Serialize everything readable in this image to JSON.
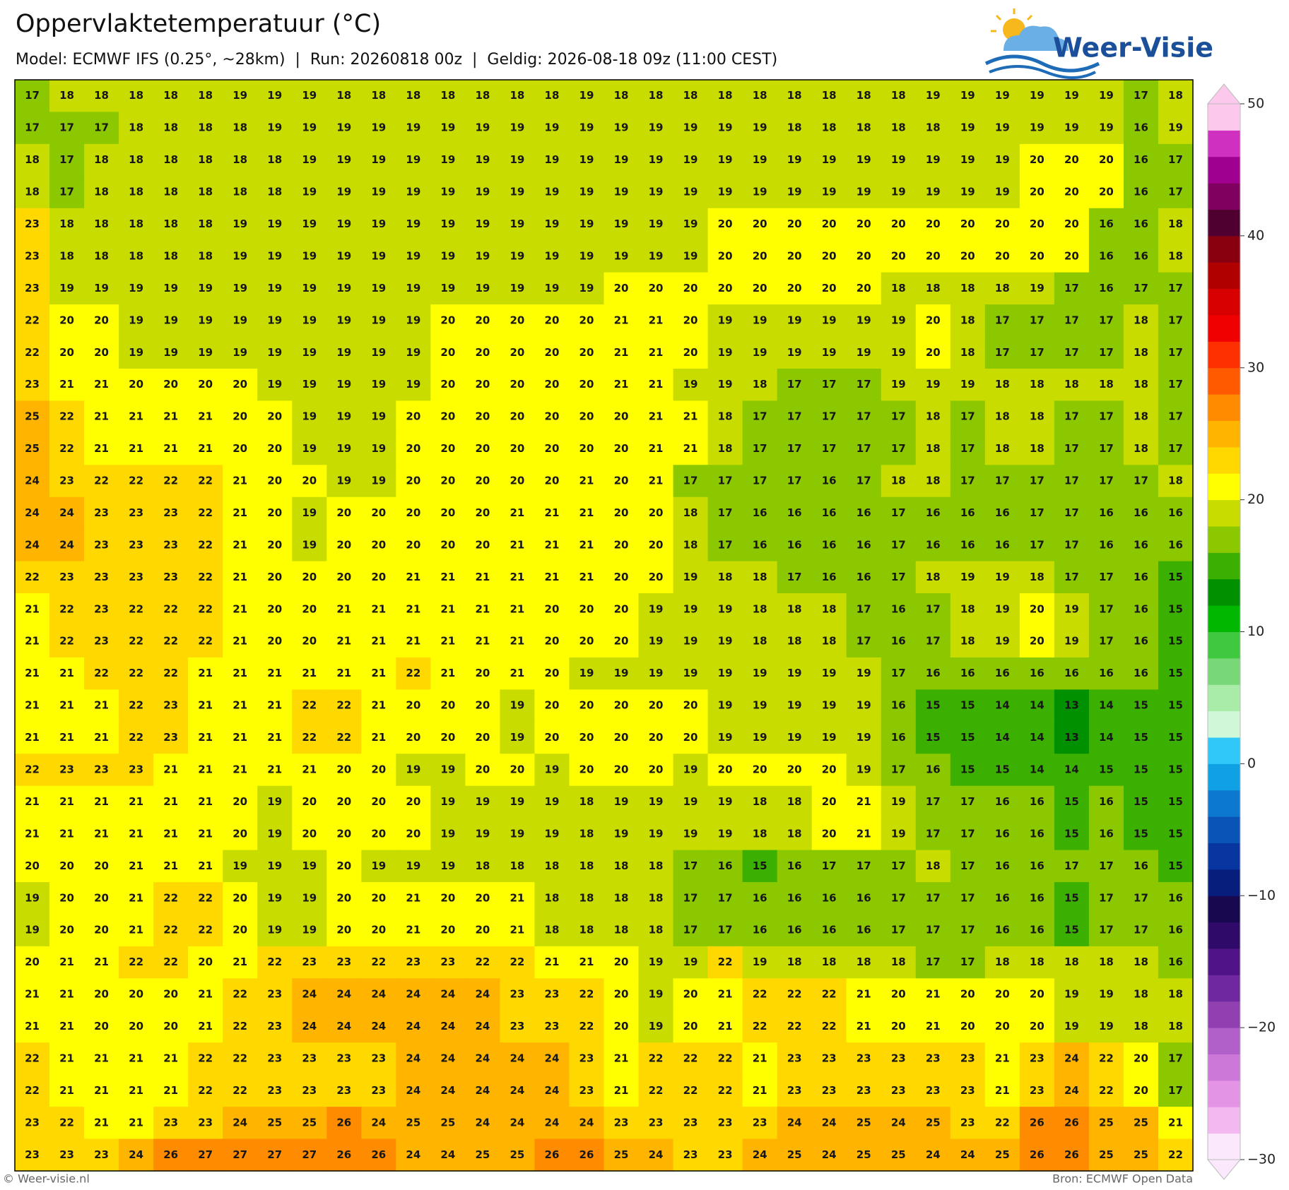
{
  "header": {
    "title": "Oppervlaktetemperatuur (°C)",
    "subtitle": "Model: ECMWF IFS (0.25°, ~28km)  |  Run: 20260818 00z  |  Geldig: 2026-08-18 09z (11:00 CEST)"
  },
  "logo": {
    "text": "Weer-Visie"
  },
  "map": {
    "values": [
      [
        17,
        18,
        18,
        18,
        18,
        18,
        19,
        19,
        19,
        18,
        18,
        18,
        18,
        18,
        18,
        18,
        19,
        18,
        18,
        18,
        18,
        18,
        18,
        18,
        18,
        18,
        19,
        19,
        19,
        19,
        19,
        19,
        17,
        18
      ],
      [
        17,
        17,
        17,
        18,
        18,
        18,
        18,
        19,
        19,
        19,
        19,
        19,
        19,
        19,
        19,
        19,
        19,
        19,
        19,
        19,
        19,
        19,
        18,
        18,
        18,
        18,
        18,
        19,
        19,
        19,
        19,
        19,
        16,
        19
      ],
      [
        18,
        17,
        18,
        18,
        18,
        18,
        18,
        18,
        19,
        19,
        19,
        19,
        19,
        19,
        19,
        19,
        19,
        19,
        19,
        19,
        19,
        19,
        19,
        19,
        19,
        19,
        19,
        19,
        19,
        20,
        20,
        20,
        16,
        17
      ],
      [
        18,
        17,
        18,
        18,
        18,
        18,
        18,
        18,
        19,
        19,
        19,
        19,
        19,
        19,
        19,
        19,
        19,
        19,
        19,
        19,
        19,
        19,
        19,
        19,
        19,
        19,
        19,
        19,
        19,
        20,
        20,
        20,
        16,
        17
      ],
      [
        23,
        18,
        18,
        18,
        18,
        18,
        19,
        19,
        19,
        19,
        19,
        19,
        19,
        19,
        19,
        19,
        19,
        19,
        19,
        19,
        20,
        20,
        20,
        20,
        20,
        20,
        20,
        20,
        20,
        20,
        20,
        16,
        16,
        18
      ],
      [
        23,
        18,
        18,
        18,
        18,
        18,
        19,
        19,
        19,
        19,
        19,
        19,
        19,
        19,
        19,
        19,
        19,
        19,
        19,
        19,
        20,
        20,
        20,
        20,
        20,
        20,
        20,
        20,
        20,
        20,
        20,
        16,
        16,
        18
      ],
      [
        23,
        19,
        19,
        19,
        19,
        19,
        19,
        19,
        19,
        19,
        19,
        19,
        19,
        19,
        19,
        19,
        19,
        20,
        20,
        20,
        20,
        20,
        20,
        20,
        20,
        18,
        18,
        18,
        18,
        19,
        17,
        16,
        17,
        17
      ],
      [
        22,
        20,
        20,
        19,
        19,
        19,
        19,
        19,
        19,
        19,
        19,
        19,
        20,
        20,
        20,
        20,
        20,
        21,
        21,
        20,
        19,
        19,
        19,
        19,
        19,
        19,
        20,
        18,
        17,
        17,
        17,
        17,
        18,
        17
      ],
      [
        22,
        20,
        20,
        19,
        19,
        19,
        19,
        19,
        19,
        19,
        19,
        19,
        20,
        20,
        20,
        20,
        20,
        21,
        21,
        20,
        19,
        19,
        19,
        19,
        19,
        19,
        20,
        18,
        17,
        17,
        17,
        17,
        18,
        17
      ],
      [
        23,
        21,
        21,
        20,
        20,
        20,
        20,
        19,
        19,
        19,
        19,
        19,
        20,
        20,
        20,
        20,
        20,
        21,
        21,
        19,
        19,
        18,
        17,
        17,
        17,
        19,
        19,
        19,
        18,
        18,
        18,
        18,
        18,
        17
      ],
      [
        25,
        22,
        21,
        21,
        21,
        21,
        20,
        20,
        19,
        19,
        19,
        20,
        20,
        20,
        20,
        20,
        20,
        20,
        21,
        21,
        18,
        17,
        17,
        17,
        17,
        17,
        18,
        17,
        18,
        18,
        17,
        17,
        18,
        17
      ],
      [
        25,
        22,
        21,
        21,
        21,
        21,
        20,
        20,
        19,
        19,
        19,
        20,
        20,
        20,
        20,
        20,
        20,
        20,
        21,
        21,
        18,
        17,
        17,
        17,
        17,
        17,
        18,
        17,
        18,
        18,
        17,
        17,
        18,
        17
      ],
      [
        24,
        23,
        22,
        22,
        22,
        22,
        21,
        20,
        20,
        19,
        19,
        20,
        20,
        20,
        20,
        20,
        21,
        20,
        21,
        17,
        17,
        17,
        17,
        16,
        17,
        18,
        18,
        17,
        17,
        17,
        17,
        17,
        17,
        18
      ],
      [
        24,
        24,
        23,
        23,
        23,
        22,
        21,
        20,
        19,
        20,
        20,
        20,
        20,
        20,
        21,
        21,
        21,
        20,
        20,
        18,
        17,
        16,
        16,
        16,
        16,
        17,
        16,
        16,
        16,
        17,
        17,
        16,
        16,
        16
      ],
      [
        24,
        24,
        23,
        23,
        23,
        22,
        21,
        20,
        19,
        20,
        20,
        20,
        20,
        20,
        21,
        21,
        21,
        20,
        20,
        18,
        17,
        16,
        16,
        16,
        16,
        17,
        16,
        16,
        16,
        17,
        17,
        16,
        16,
        16
      ],
      [
        22,
        23,
        23,
        23,
        23,
        22,
        21,
        20,
        20,
        20,
        20,
        21,
        21,
        21,
        21,
        21,
        21,
        20,
        20,
        19,
        18,
        18,
        17,
        16,
        16,
        17,
        18,
        19,
        19,
        18,
        17,
        17,
        16,
        15
      ],
      [
        21,
        22,
        23,
        22,
        22,
        22,
        21,
        20,
        20,
        21,
        21,
        21,
        21,
        21,
        21,
        20,
        20,
        20,
        19,
        19,
        19,
        18,
        18,
        18,
        17,
        16,
        17,
        18,
        19,
        20,
        19,
        17,
        16,
        15
      ],
      [
        21,
        22,
        23,
        22,
        22,
        22,
        21,
        20,
        20,
        21,
        21,
        21,
        21,
        21,
        21,
        20,
        20,
        20,
        19,
        19,
        19,
        18,
        18,
        18,
        17,
        16,
        17,
        18,
        19,
        20,
        19,
        17,
        16,
        15
      ],
      [
        21,
        21,
        22,
        22,
        22,
        21,
        21,
        21,
        21,
        21,
        21,
        22,
        21,
        20,
        21,
        20,
        19,
        19,
        19,
        19,
        19,
        19,
        19,
        19,
        19,
        17,
        16,
        16,
        16,
        16,
        16,
        16,
        16,
        15
      ],
      [
        21,
        21,
        21,
        22,
        23,
        21,
        21,
        21,
        22,
        22,
        21,
        20,
        20,
        20,
        19,
        20,
        20,
        20,
        20,
        20,
        19,
        19,
        19,
        19,
        19,
        16,
        15,
        15,
        14,
        14,
        13,
        14,
        15,
        15
      ],
      [
        21,
        21,
        21,
        22,
        23,
        21,
        21,
        21,
        22,
        22,
        21,
        20,
        20,
        20,
        19,
        20,
        20,
        20,
        20,
        20,
        19,
        19,
        19,
        19,
        19,
        16,
        15,
        15,
        14,
        14,
        13,
        14,
        15,
        15
      ],
      [
        22,
        23,
        23,
        23,
        21,
        21,
        21,
        21,
        21,
        20,
        20,
        19,
        19,
        20,
        20,
        19,
        20,
        20,
        20,
        19,
        20,
        20,
        20,
        20,
        19,
        17,
        16,
        15,
        15,
        14,
        14,
        15,
        15,
        15
      ],
      [
        21,
        21,
        21,
        21,
        21,
        21,
        20,
        19,
        20,
        20,
        20,
        20,
        19,
        19,
        19,
        19,
        18,
        19,
        19,
        19,
        19,
        18,
        18,
        20,
        21,
        19,
        17,
        17,
        16,
        16,
        15,
        16,
        15,
        15
      ],
      [
        21,
        21,
        21,
        21,
        21,
        21,
        20,
        19,
        20,
        20,
        20,
        20,
        19,
        19,
        19,
        19,
        18,
        19,
        19,
        19,
        19,
        18,
        18,
        20,
        21,
        19,
        17,
        17,
        16,
        16,
        15,
        16,
        15,
        15
      ],
      [
        20,
        20,
        20,
        21,
        21,
        21,
        19,
        19,
        19,
        20,
        19,
        19,
        19,
        18,
        18,
        18,
        18,
        18,
        18,
        17,
        16,
        15,
        16,
        17,
        17,
        17,
        18,
        17,
        16,
        16,
        17,
        17,
        16,
        15
      ],
      [
        19,
        20,
        20,
        21,
        22,
        22,
        20,
        19,
        19,
        20,
        20,
        21,
        20,
        20,
        21,
        18,
        18,
        18,
        18,
        17,
        17,
        16,
        16,
        16,
        16,
        17,
        17,
        17,
        16,
        16,
        15,
        17,
        17,
        16
      ],
      [
        19,
        20,
        20,
        21,
        22,
        22,
        20,
        19,
        19,
        20,
        20,
        21,
        20,
        20,
        21,
        18,
        18,
        18,
        18,
        17,
        17,
        16,
        16,
        16,
        16,
        17,
        17,
        17,
        16,
        16,
        15,
        17,
        17,
        16
      ],
      [
        20,
        21,
        21,
        22,
        22,
        20,
        21,
        22,
        23,
        23,
        22,
        23,
        23,
        22,
        22,
        21,
        21,
        20,
        19,
        19,
        22,
        19,
        18,
        18,
        18,
        18,
        17,
        17,
        18,
        18,
        18,
        18,
        18,
        16
      ],
      [
        21,
        21,
        20,
        20,
        20,
        21,
        22,
        23,
        24,
        24,
        24,
        24,
        24,
        24,
        23,
        23,
        22,
        20,
        19,
        20,
        21,
        22,
        22,
        22,
        21,
        20,
        21,
        20,
        20,
        20,
        19,
        19,
        18,
        18
      ],
      [
        21,
        21,
        20,
        20,
        20,
        21,
        22,
        23,
        24,
        24,
        24,
        24,
        24,
        24,
        23,
        23,
        22,
        20,
        19,
        20,
        21,
        22,
        22,
        22,
        21,
        20,
        21,
        20,
        20,
        20,
        19,
        19,
        18,
        18
      ],
      [
        22,
        21,
        21,
        21,
        21,
        22,
        22,
        23,
        23,
        23,
        23,
        24,
        24,
        24,
        24,
        24,
        23,
        21,
        22,
        22,
        22,
        21,
        23,
        23,
        23,
        23,
        23,
        23,
        21,
        23,
        24,
        22,
        20,
        17
      ],
      [
        22,
        21,
        21,
        21,
        21,
        22,
        22,
        23,
        23,
        23,
        23,
        24,
        24,
        24,
        24,
        24,
        23,
        21,
        22,
        22,
        22,
        21,
        23,
        23,
        23,
        23,
        23,
        23,
        21,
        23,
        24,
        22,
        20,
        17
      ],
      [
        23,
        22,
        21,
        21,
        23,
        23,
        24,
        25,
        25,
        26,
        24,
        25,
        25,
        24,
        24,
        24,
        24,
        23,
        23,
        23,
        23,
        23,
        24,
        24,
        25,
        24,
        25,
        23,
        22,
        26,
        26,
        25,
        25,
        21
      ],
      [
        23,
        23,
        23,
        24,
        26,
        27,
        27,
        27,
        27,
        26,
        26,
        24,
        24,
        25,
        25,
        26,
        26,
        25,
        24,
        23,
        23,
        24,
        25,
        24,
        25,
        25,
        24,
        24,
        25,
        26,
        26,
        25,
        25,
        22
      ]
    ]
  },
  "colorbar": {
    "lim": [
      -30,
      50
    ],
    "ticks": [
      50,
      40,
      30,
      20,
      10,
      0,
      {
        "value": -10,
        "label": "−10"
      },
      {
        "value": -20,
        "label": "−20"
      },
      {
        "value": -30,
        "label": "−30"
      }
    ],
    "colors": [
      "#fce8fc",
      "#f4b8f0",
      "#e494e4",
      "#cc78d8",
      "#b060c8",
      "#9040b0",
      "#7028a0",
      "#501488",
      "#300a68",
      "#180850",
      "#081e7c",
      "#0836a0",
      "#0a54b8",
      "#0c78d0",
      "#10a0e4",
      "#30c8f8",
      "#d0f8d8",
      "#a8eca8",
      "#78d878",
      "#40c840",
      "#00b800",
      "#009000",
      "#3cb000",
      "#8cc800",
      "#c8dc00",
      "#ffff00",
      "#ffd800",
      "#ffb400",
      "#ff8c00",
      "#ff5a00",
      "#ff3000",
      "#f00000",
      "#d80000",
      "#b00000",
      "#880010",
      "#500030",
      "#800060",
      "#a00090",
      "#d030c0",
      "#fcc8ec"
    ]
  },
  "footer": {
    "left": "© Weer-visie.nl",
    "right": "Bron: ECMWF Open Data"
  }
}
